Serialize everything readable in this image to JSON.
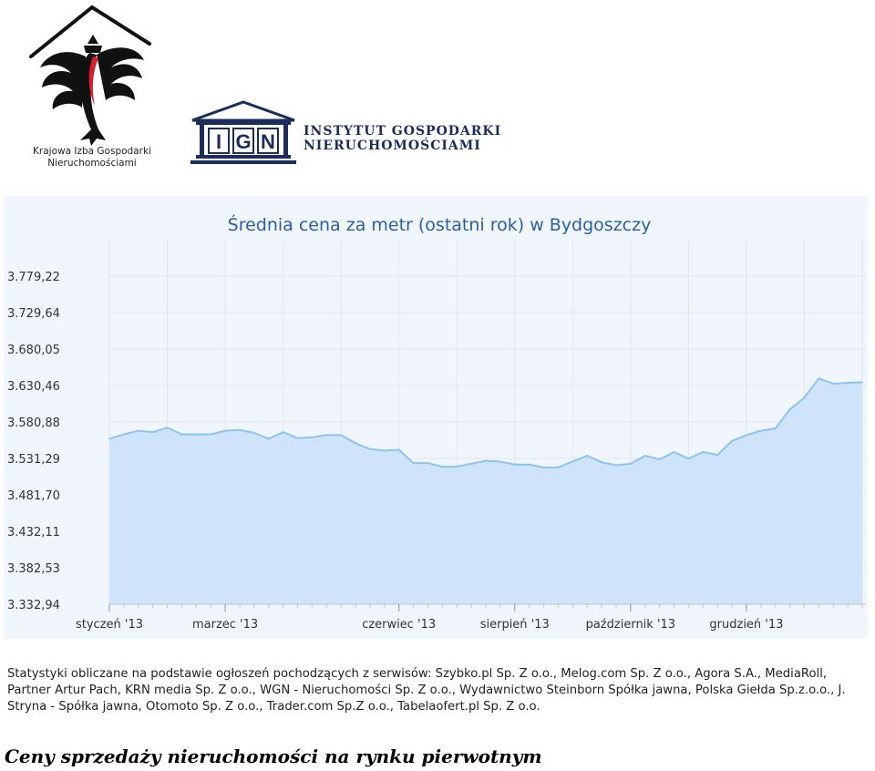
{
  "logos": {
    "kig_caption_line1": "Krajowa Izba Gospodarki",
    "kig_caption_line2": "Nieruchomościami",
    "ign_letters": [
      "I",
      "G",
      "N"
    ],
    "ign_name_line1": "INSTYTUT GOSPODARKI",
    "ign_name_line2": "NIERUCHOMOŚCIAMI"
  },
  "chart_data": {
    "type": "area",
    "title": "Średnia cena za metr (ostatni rok) w Bydgoszczy",
    "xlabel": "",
    "ylabel": "",
    "ylim": [
      3332.94,
      3828.81
    ],
    "y_ticks": [
      "3.779,22",
      "3.729,64",
      "3.680,05",
      "3.630,46",
      "3.580,88",
      "3.531,29",
      "3.481,70",
      "3.432,11",
      "3.382,53",
      "3.332,94"
    ],
    "y_tick_values": [
      3779.22,
      3729.64,
      3680.05,
      3630.46,
      3580.88,
      3531.29,
      3481.7,
      3432.11,
      3382.53,
      3332.94
    ],
    "x_tick_labels": [
      "styczeń '13",
      "marzec '13",
      "czerwiec '13",
      "sierpień '13",
      "październik '13",
      "grudzień '13"
    ],
    "x_tick_positions": [
      0,
      8,
      20,
      28,
      36,
      44
    ],
    "grid": true,
    "colors": {
      "line": "#8cc3f3",
      "fill": "#cfe4fb",
      "title": "#2b5ea8",
      "grid": "#dfe6f0"
    },
    "series": [
      {
        "values": [
          3558,
          3564,
          3569,
          3567,
          3573,
          3564,
          3564,
          3564,
          3569,
          3570,
          3566,
          3558,
          3567,
          3559,
          3560,
          3563,
          3563,
          3552,
          3544,
          3542,
          3543,
          3525,
          3525,
          3520,
          3520,
          3524,
          3528,
          3527,
          3523,
          3523,
          3519,
          3519,
          3527,
          3535,
          3526,
          3522,
          3524,
          3535,
          3530,
          3540,
          3531,
          3540,
          3536,
          3555,
          3563,
          3569,
          3572,
          3598,
          3614,
          3640,
          3633,
          3634,
          3635
        ]
      }
    ]
  },
  "sources_text": "Statystyki obliczane na podstawie ogłoszeń pochodzących z serwisów: Szybko.pl Sp. Z o.o., Melog.com Sp. Z o.o., Agora S.A., MediaRoll, Partner Artur Pach, KRN media Sp. Z o.o., WGN - Nieruchomości Sp. Z o.o., Wydawnictwo Steinborn Spółka jawna, Polska Giełda Sp.z.o.o., J. Stryna - Spółka jawna, Otomoto Sp. Z o.o., Trader.com Sp.Z o.o., Tabelaofert.pl Sp. Z o.o.",
  "caption": "Ceny sprzedaży nieruchomości na rynku pierwotnym"
}
